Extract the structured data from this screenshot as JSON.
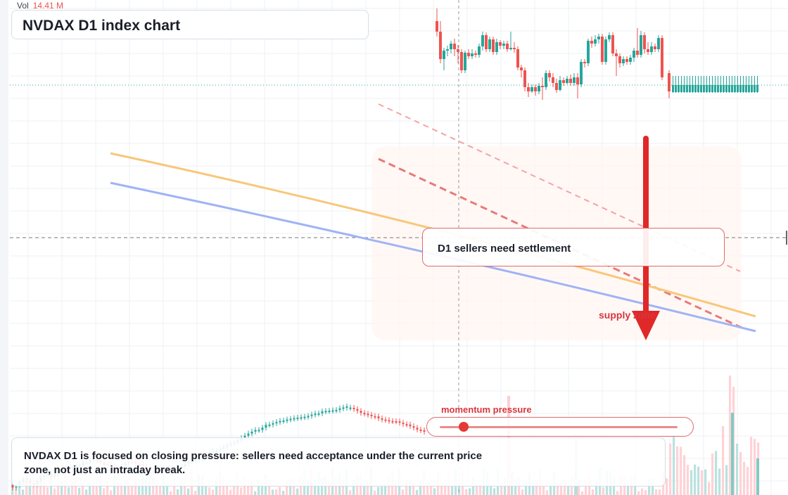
{
  "chart": {
    "title": "NVDAX D1 index chart",
    "volume_label": "Vol",
    "volume_value": "14.41 M",
    "settlement_callout": "D1 sellers need settlement",
    "supply_label": "supply zone",
    "momentum_label": "momentum pressure",
    "momentum_level": 0.1,
    "note": "NVDAX D1 is focused on closing pressure: sellers need acceptance under the current price zone, not just an intraday break.",
    "colors": {
      "up": "#26a69a",
      "down": "#ef5350",
      "orange_line": "#f8c77a",
      "blue_line": "#9fb3f5",
      "arrow": "#e02828",
      "dashed_resistance": "#e88080"
    },
    "icons": [
      "down-arrow-icon",
      "slider-knob-icon"
    ]
  }
}
